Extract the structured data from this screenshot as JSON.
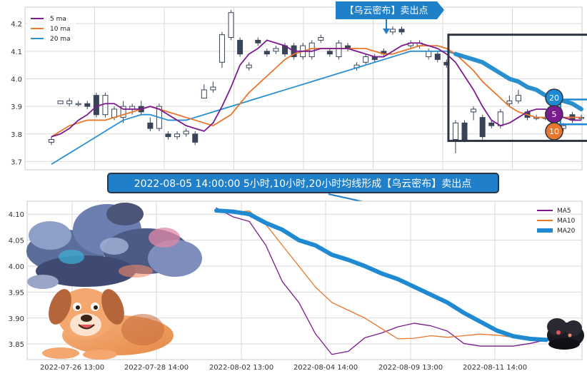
{
  "top_banner": "【乌云密布】卖出点",
  "mid_banner": "2022-08-05 14:00:00 5小时,10小时,20小时均线形成【乌云密布】卖出点",
  "badges": [
    "20",
    "5",
    "10"
  ],
  "colors": {
    "ma5": "#7b1b8f",
    "ma10": "#e8762b",
    "ma20": "#2a8fcf",
    "banner": "#1f7fc8",
    "candle": "#3a4459"
  },
  "chart_data": [
    {
      "type": "candlestick",
      "legend": [
        {
          "name": "5 ma",
          "color": "#7b1b8f"
        },
        {
          "name": "10 ma",
          "color": "#e8762b"
        },
        {
          "name": "20 ma",
          "color": "#2a8fcf"
        }
      ],
      "legend_position": "top-left",
      "ylim": [
        3.67,
        4.26
      ],
      "yticks": [
        3.7,
        3.8,
        3.9,
        4.0,
        4.1,
        4.2
      ],
      "ytick_labels": [
        "3.7",
        "3.8",
        "3.9",
        "4.0",
        "4.1",
        "4.2"
      ],
      "grid": true,
      "n_bars": 60,
      "candles": [
        [
          3.77,
          3.78,
          3.76,
          3.79
        ],
        [
          3.91,
          3.92,
          3.91,
          3.92
        ],
        [
          3.91,
          3.92,
          3.9,
          3.93
        ],
        [
          3.91,
          3.91,
          3.9,
          3.92
        ],
        [
          3.91,
          3.9,
          3.89,
          3.92
        ],
        [
          3.94,
          3.87,
          3.86,
          3.95
        ],
        [
          3.87,
          3.94,
          3.86,
          3.95
        ],
        [
          3.86,
          3.89,
          3.85,
          3.9
        ],
        [
          3.86,
          3.9,
          3.84,
          3.92
        ],
        [
          3.89,
          3.9,
          3.87,
          3.91
        ],
        [
          3.9,
          3.88,
          3.87,
          3.92
        ],
        [
          3.84,
          3.82,
          3.81,
          3.86
        ],
        [
          3.82,
          3.9,
          3.81,
          3.91
        ],
        [
          3.8,
          3.79,
          3.78,
          3.81
        ],
        [
          3.79,
          3.8,
          3.78,
          3.81
        ],
        [
          3.8,
          3.81,
          3.79,
          3.82
        ],
        [
          3.8,
          3.77,
          3.76,
          3.81
        ],
        [
          3.93,
          3.96,
          3.93,
          3.98
        ],
        [
          3.96,
          3.97,
          3.95,
          3.99
        ],
        [
          4.06,
          4.16,
          4.04,
          4.17
        ],
        [
          4.15,
          4.24,
          4.14,
          4.25
        ],
        [
          4.14,
          4.09,
          4.08,
          4.15
        ],
        [
          4.04,
          4.05,
          4.03,
          4.06
        ],
        [
          4.14,
          4.13,
          4.12,
          4.15
        ],
        [
          4.1,
          4.09,
          4.08,
          4.11
        ],
        [
          4.1,
          4.11,
          4.09,
          4.12
        ],
        [
          4.12,
          4.09,
          4.08,
          4.13
        ],
        [
          4.12,
          4.08,
          4.07,
          4.13
        ],
        [
          4.08,
          4.12,
          4.07,
          4.13
        ],
        [
          4.08,
          4.13,
          4.07,
          4.14
        ],
        [
          4.14,
          4.15,
          4.13,
          4.16
        ],
        [
          4.1,
          4.09,
          4.08,
          4.11
        ],
        [
          4.08,
          4.13,
          4.07,
          4.14
        ],
        [
          4.12,
          4.11,
          4.1,
          4.13
        ],
        [
          4.04,
          4.05,
          4.03,
          4.06
        ],
        [
          4.06,
          4.08,
          4.05,
          4.09
        ],
        [
          4.08,
          4.07,
          4.06,
          4.09
        ],
        [
          4.1,
          4.09,
          4.08,
          4.11
        ],
        [
          4.17,
          4.18,
          4.16,
          4.19
        ],
        [
          4.18,
          4.17,
          4.16,
          4.19
        ],
        [
          4.12,
          4.13,
          4.11,
          4.14
        ],
        [
          4.12,
          4.13,
          4.11,
          4.14
        ],
        [
          4.08,
          4.1,
          4.07,
          4.11
        ],
        [
          4.09,
          4.07,
          4.06,
          4.1
        ],
        [
          4.06,
          4.05,
          4.04,
          4.07
        ],
        [
          3.78,
          3.84,
          3.73,
          3.85
        ],
        [
          3.84,
          3.78,
          3.77,
          3.85
        ],
        [
          3.88,
          3.89,
          3.85,
          3.9
        ],
        [
          3.86,
          3.79,
          3.78,
          3.87
        ],
        [
          3.84,
          3.83,
          3.82,
          3.85
        ],
        [
          3.83,
          3.88,
          3.82,
          3.89
        ],
        [
          3.91,
          3.92,
          3.9,
          3.94
        ],
        [
          3.92,
          3.94,
          3.91,
          3.96
        ],
        [
          3.88,
          3.86,
          3.85,
          3.89
        ],
        [
          3.86,
          3.86,
          3.85,
          3.87
        ],
        [
          3.86,
          3.86,
          3.85,
          3.88
        ],
        [
          3.84,
          3.82,
          3.81,
          3.85
        ],
        [
          3.82,
          3.83,
          3.81,
          3.84
        ],
        [
          3.87,
          3.85,
          3.84,
          3.88
        ],
        [
          3.86,
          3.86,
          3.85,
          3.87
        ]
      ],
      "ma5": [
        3.79,
        3.8,
        3.82,
        3.85,
        3.87,
        3.9,
        3.91,
        3.91,
        3.89,
        3.89,
        3.89,
        3.9,
        3.89,
        3.87,
        3.85,
        3.83,
        3.82,
        3.81,
        3.84,
        3.9,
        3.97,
        4.05,
        4.09,
        4.11,
        4.14,
        4.13,
        4.12,
        4.1,
        4.1,
        4.1,
        4.11,
        4.11,
        4.11,
        4.11,
        4.1,
        4.09,
        4.08,
        4.08,
        4.1,
        4.12,
        4.13,
        4.13,
        4.12,
        4.11,
        4.09,
        4.06,
        4.01,
        3.96,
        3.9,
        3.85,
        3.83,
        3.84,
        3.86,
        3.88,
        3.89,
        3.89,
        3.88,
        3.86,
        3.85,
        3.85
      ],
      "ma10": [
        3.79,
        3.81,
        3.83,
        3.84,
        3.85,
        3.85,
        3.85,
        3.86,
        3.87,
        3.88,
        3.89,
        3.9,
        3.89,
        3.88,
        3.87,
        3.86,
        3.85,
        3.84,
        3.83,
        3.85,
        3.87,
        3.91,
        3.95,
        3.98,
        4.01,
        4.04,
        4.07,
        4.09,
        4.1,
        4.11,
        4.11,
        4.11,
        4.11,
        4.11,
        4.11,
        4.11,
        4.1,
        4.09,
        4.09,
        4.1,
        4.11,
        4.12,
        4.12,
        4.12,
        4.11,
        4.09,
        4.06,
        4.03,
        3.99,
        3.96,
        3.93,
        3.9,
        3.88,
        3.87,
        3.86,
        3.86,
        3.86,
        3.86,
        3.86,
        3.86
      ],
      "ma20": [
        3.69,
        3.71,
        3.73,
        3.75,
        3.77,
        3.79,
        3.81,
        3.83,
        3.85,
        3.86,
        3.87,
        3.87,
        3.86,
        3.85,
        3.85,
        3.85,
        3.86,
        3.87,
        3.88,
        3.89,
        3.9,
        3.91,
        3.92,
        3.93,
        3.94,
        3.95,
        3.96,
        3.97,
        3.98,
        3.99,
        4.0,
        4.01,
        4.02,
        4.03,
        4.04,
        4.05,
        4.06,
        4.07,
        4.08,
        4.09,
        4.1,
        4.1,
        4.1,
        4.1,
        4.1,
        4.09,
        4.08,
        4.07,
        4.06,
        4.04,
        4.02,
        4.0,
        3.99,
        3.97,
        3.96,
        3.94,
        3.93,
        3.92,
        3.91,
        3.89
      ],
      "highlight_start": 45,
      "highlight_end": 59
    },
    {
      "type": "line",
      "x": [
        "2022-07-26 13:00",
        "2022-07-28 14:00",
        "2022-08-02 13:00",
        "2022-08-04 14:00",
        "2022-08-09 13:00",
        "2022-08-11 14:00"
      ],
      "ylim": [
        3.82,
        4.125
      ],
      "yticks": [
        3.85,
        3.9,
        3.95,
        4.0,
        4.05,
        4.1
      ],
      "ytick_labels": [
        "3.85",
        "3.90",
        "3.95",
        "4.00",
        "4.05",
        "4.10"
      ],
      "grid": true,
      "legend_position": "top-right",
      "series": [
        {
          "name": "MA5",
          "color": "#7b1b8f",
          "width": 1.3,
          "points": [
            [
              0,
              4.112
            ],
            [
              0.5,
              4.095
            ],
            [
              1,
              4.086
            ],
            [
              1.5,
              4.04
            ],
            [
              2,
              3.97
            ],
            [
              2.5,
              3.93
            ],
            [
              3,
              3.87
            ],
            [
              3.5,
              3.83
            ],
            [
              4,
              3.836
            ],
            [
              4.5,
              3.862
            ],
            [
              5,
              3.871
            ],
            [
              5.5,
              3.883
            ],
            [
              6,
              3.89
            ],
            [
              6.5,
              3.885
            ],
            [
              7,
              3.875
            ],
            [
              7.5,
              3.851
            ],
            [
              8,
              3.846
            ],
            [
              8.5,
              3.846
            ],
            [
              9,
              3.846
            ],
            [
              9.5,
              3.851
            ],
            [
              10,
              3.858
            ]
          ]
        },
        {
          "name": "MA10",
          "color": "#e8762b",
          "width": 1.3,
          "points": [
            [
              0,
              4.105
            ],
            [
              0.5,
              4.104
            ],
            [
              1,
              4.106
            ],
            [
              1.5,
              4.08
            ],
            [
              2,
              4.04
            ],
            [
              2.5,
              4.0
            ],
            [
              3,
              3.96
            ],
            [
              3.5,
              3.93
            ],
            [
              4,
              3.915
            ],
            [
              4.5,
              3.9
            ],
            [
              5,
              3.88
            ],
            [
              5.5,
              3.86
            ],
            [
              6,
              3.861
            ],
            [
              6.5,
              3.866
            ],
            [
              7,
              3.863
            ],
            [
              7.5,
              3.866
            ],
            [
              8,
              3.869
            ],
            [
              8.5,
              3.867
            ],
            [
              9,
              3.863
            ],
            [
              9.5,
              3.861
            ],
            [
              10,
              3.858
            ]
          ]
        },
        {
          "name": "MA20",
          "color": "#1f8ad1",
          "width": 6,
          "points": [
            [
              0,
              4.107
            ],
            [
              0.5,
              4.105
            ],
            [
              1,
              4.1
            ],
            [
              1.5,
              4.083
            ],
            [
              2,
              4.07
            ],
            [
              2.5,
              4.05
            ],
            [
              3,
              4.04
            ],
            [
              3.5,
              4.022
            ],
            [
              4,
              4.012
            ],
            [
              4.5,
              4.0
            ],
            [
              5,
              3.986
            ],
            [
              5.5,
              3.975
            ],
            [
              6,
              3.96
            ],
            [
              6.5,
              3.945
            ],
            [
              7,
              3.93
            ],
            [
              7.5,
              3.91
            ],
            [
              8,
              3.893
            ],
            [
              8.5,
              3.876
            ],
            [
              9,
              3.865
            ],
            [
              9.5,
              3.86
            ],
            [
              10,
              3.858
            ]
          ]
        }
      ],
      "n_steps": 10
    }
  ]
}
